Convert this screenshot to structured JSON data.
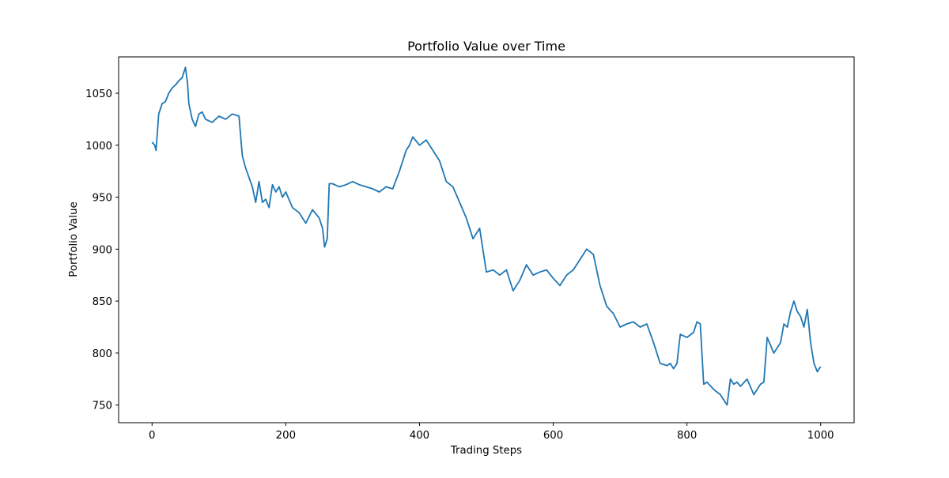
{
  "chart_data": {
    "type": "line",
    "title": "Portfolio Value over Time",
    "xlabel": "Trading Steps",
    "ylabel": "Portfolio Value",
    "xlim": [
      -50,
      1050
    ],
    "ylim": [
      733,
      1085
    ],
    "xticks": [
      0,
      200,
      400,
      600,
      800,
      1000
    ],
    "yticks": [
      750,
      800,
      850,
      900,
      950,
      1000,
      1050
    ],
    "grid": false,
    "line_color": "#1f77b4",
    "series": [
      {
        "x": [
          0,
          4,
          6,
          10,
          15,
          20,
          25,
          30,
          35,
          40,
          45,
          50,
          53,
          55,
          60,
          65,
          70,
          75,
          80,
          90,
          100,
          110,
          120,
          130,
          135,
          140,
          150,
          155,
          160,
          165,
          170,
          175,
          180,
          185,
          190,
          195,
          200,
          210,
          220,
          230,
          240,
          250,
          255,
          258,
          262,
          265,
          270,
          280,
          290,
          300,
          310,
          320,
          330,
          340,
          350,
          360,
          370,
          380,
          385,
          390,
          400,
          410,
          420,
          430,
          440,
          450,
          460,
          470,
          480,
          490,
          500,
          510,
          520,
          530,
          540,
          550,
          560,
          570,
          580,
          590,
          600,
          610,
          620,
          630,
          640,
          650,
          660,
          670,
          680,
          690,
          700,
          710,
          720,
          730,
          740,
          750,
          760,
          770,
          775,
          780,
          785,
          790,
          800,
          810,
          815,
          820,
          825,
          830,
          840,
          850,
          855,
          860,
          865,
          870,
          875,
          880,
          890,
          900,
          910,
          915,
          920,
          930,
          940,
          945,
          950,
          955,
          960,
          965,
          970,
          975,
          980,
          985,
          990,
          995,
          1000
        ],
        "y": [
          1003,
          1000,
          995,
          1030,
          1040,
          1042,
          1050,
          1055,
          1058,
          1062,
          1065,
          1075,
          1060,
          1040,
          1025,
          1018,
          1030,
          1032,
          1025,
          1022,
          1028,
          1025,
          1030,
          1028,
          990,
          978,
          960,
          945,
          965,
          945,
          948,
          940,
          962,
          955,
          960,
          950,
          955,
          940,
          935,
          925,
          938,
          930,
          920,
          902,
          910,
          963,
          963,
          960,
          962,
          965,
          962,
          960,
          958,
          955,
          960,
          958,
          975,
          995,
          1000,
          1008,
          1000,
          1005,
          995,
          985,
          965,
          960,
          945,
          930,
          910,
          920,
          878,
          880,
          875,
          880,
          860,
          870,
          885,
          875,
          878,
          880,
          872,
          865,
          875,
          880,
          890,
          900,
          895,
          865,
          845,
          838,
          825,
          828,
          830,
          825,
          828,
          810,
          790,
          788,
          790,
          785,
          790,
          818,
          815,
          820,
          830,
          828,
          770,
          772,
          765,
          760,
          755,
          750,
          775,
          770,
          772,
          768,
          775,
          760,
          770,
          772,
          815,
          800,
          810,
          828,
          825,
          840,
          850,
          840,
          835,
          825,
          842,
          810,
          790,
          782,
          787
        ]
      }
    ]
  }
}
